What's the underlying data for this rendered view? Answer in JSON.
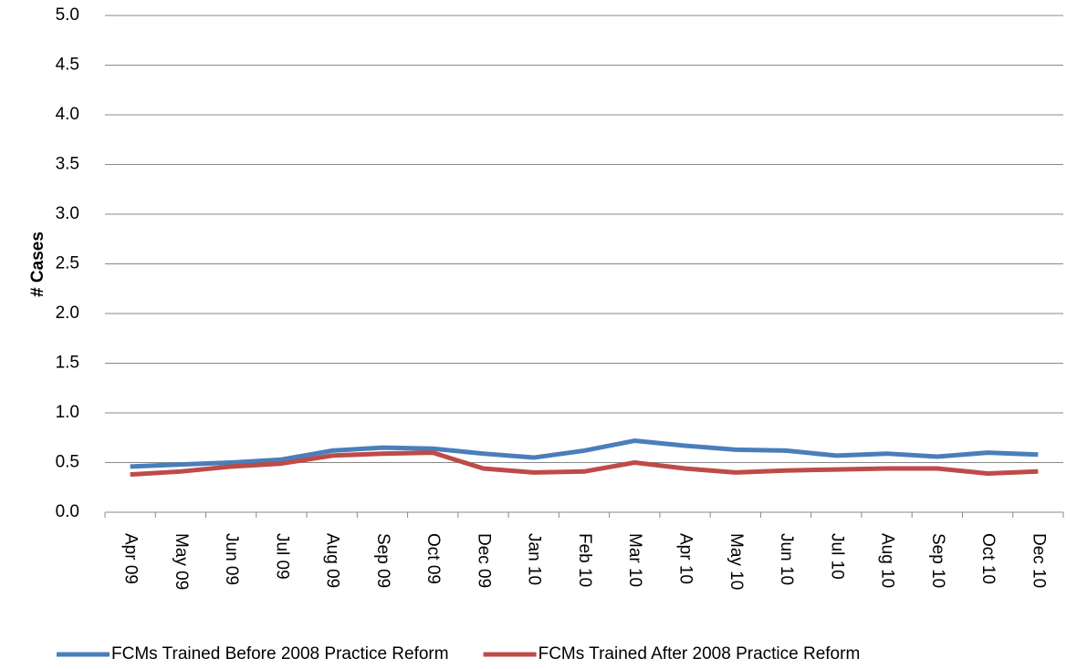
{
  "chart_data": {
    "type": "line",
    "y_label": "# Cases",
    "categories": [
      "Apr 09",
      "May 09",
      "Jun 09",
      "Jul 09",
      "Aug 09",
      "Sep 09",
      "Oct 09",
      "Dec 09",
      "Jan 10",
      "Feb 10",
      "Mar 10",
      "Apr 10",
      "May 10",
      "Jun 10",
      "Jul 10",
      "Aug 10",
      "Sep 10",
      "Oct 10",
      "Dec 10"
    ],
    "series": [
      {
        "name": "FCMs Trained Before 2008 Practice Reform",
        "color": "#4a7ebb",
        "values": [
          0.46,
          0.48,
          0.5,
          0.53,
          0.62,
          0.65,
          0.64,
          0.59,
          0.55,
          0.62,
          0.72,
          0.67,
          0.63,
          0.62,
          0.57,
          0.59,
          0.56,
          0.6,
          0.58
        ]
      },
      {
        "name": "FCMs Trained After 2008 Practice Reform",
        "color": "#be4b48",
        "values": [
          0.38,
          0.41,
          0.46,
          0.49,
          0.57,
          0.59,
          0.6,
          0.44,
          0.4,
          0.41,
          0.5,
          0.44,
          0.4,
          0.42,
          0.43,
          0.44,
          0.44,
          0.39,
          0.41
        ]
      }
    ],
    "ylim": [
      0,
      5
    ],
    "yticks": [
      {
        "value": 0,
        "label": "0.0"
      },
      0.5,
      {
        "value": 1,
        "label": "1.0"
      },
      1.5,
      {
        "value": 2,
        "label": "2.0"
      },
      2.5,
      {
        "value": 3,
        "label": "3.0"
      },
      3.5,
      {
        "value": 4,
        "label": "4.0"
      },
      4.5,
      {
        "value": 5,
        "label": "5.0"
      }
    ],
    "grid": true,
    "legend": "bottom"
  }
}
